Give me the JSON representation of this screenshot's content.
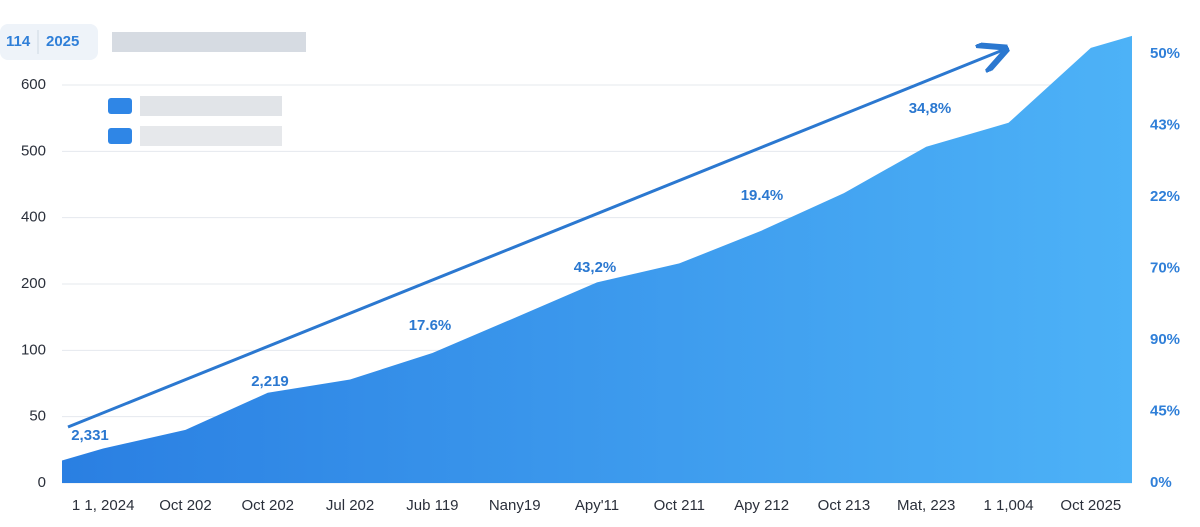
{
  "header": {
    "badge": "114",
    "year": "2025"
  },
  "chart_data": {
    "type": "area",
    "categories": [
      "1 1, 2024",
      "Oct 202",
      "Oct 202",
      "Jul 202",
      "Jub 119",
      "Nany19",
      "Apy'11",
      "Oct 211",
      "Apy 212",
      "Oct 213",
      "Mat, 223",
      "1 1,004",
      "Oct 2025"
    ],
    "values": [
      26,
      40,
      68,
      78,
      98,
      149,
      205,
      262,
      361,
      437,
      507,
      543,
      656
    ],
    "color": "#3b95ec",
    "ylim": [
      0,
      680
    ],
    "yticks": [
      0,
      50,
      100,
      200,
      400,
      500,
      600
    ],
    "y2_labels": [
      "0%",
      "45%",
      "90%",
      "70%",
      "22%",
      "43%",
      "50%"
    ],
    "annotations": [
      "2,331",
      "2,219",
      "17.6%",
      "43,2%",
      "19.4%",
      "34,8%"
    ],
    "grid": true
  }
}
